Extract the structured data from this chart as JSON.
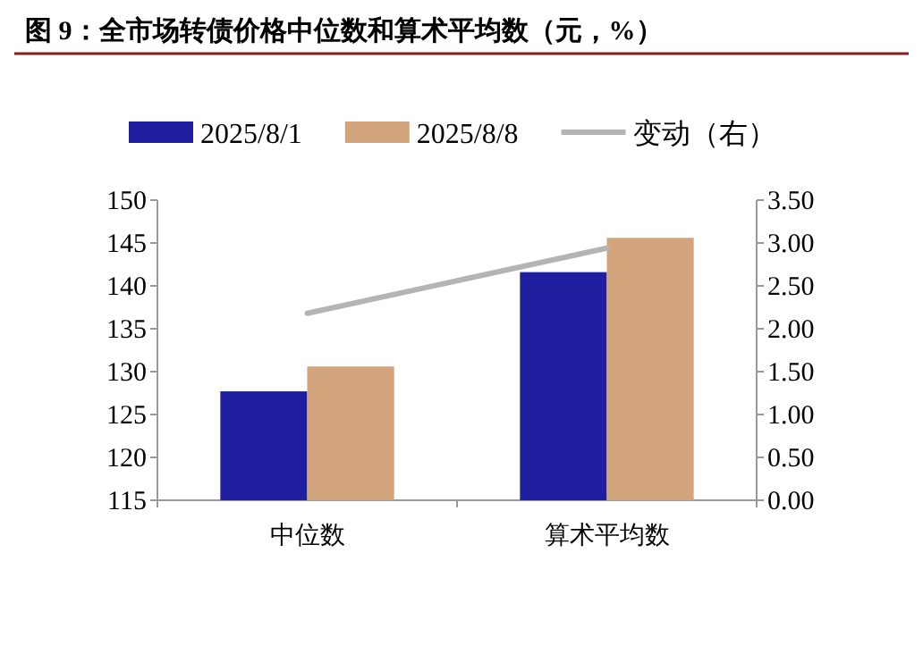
{
  "chart_data": {
    "type": "bar",
    "title": "图 9：全市场转债价格中位数和算术平均数（元，%）",
    "categories": [
      "中位数",
      "算术平均数"
    ],
    "series": [
      {
        "name": "2025/8/1",
        "color": "#1f1fa0",
        "values": [
          127.7,
          141.6
        ]
      },
      {
        "name": "2025/8/8",
        "color": "#d2a47c",
        "values": [
          130.6,
          145.6
        ]
      },
      {
        "name": "变动（右）",
        "type": "line",
        "axis": "y2",
        "color": "#b4b4b4",
        "values": [
          2.18,
          2.94
        ]
      }
    ],
    "ylim": [
      115,
      150
    ],
    "yticks": [
      115,
      120,
      125,
      130,
      135,
      140,
      145,
      150
    ],
    "y2lim": [
      0,
      3.5
    ],
    "y2ticks": [
      {
        "value": 0,
        "label": "0.00"
      },
      {
        "value": 0.5,
        "label": "0.50"
      },
      {
        "value": 1,
        "label": "1.00"
      },
      {
        "value": 1.5,
        "label": "1.50"
      },
      {
        "value": 2,
        "label": "2.00"
      },
      {
        "value": 2.5,
        "label": "2.50"
      },
      {
        "value": 3,
        "label": "3.00"
      },
      {
        "value": 3.5,
        "label": "3.50"
      }
    ],
    "legend": "top"
  }
}
